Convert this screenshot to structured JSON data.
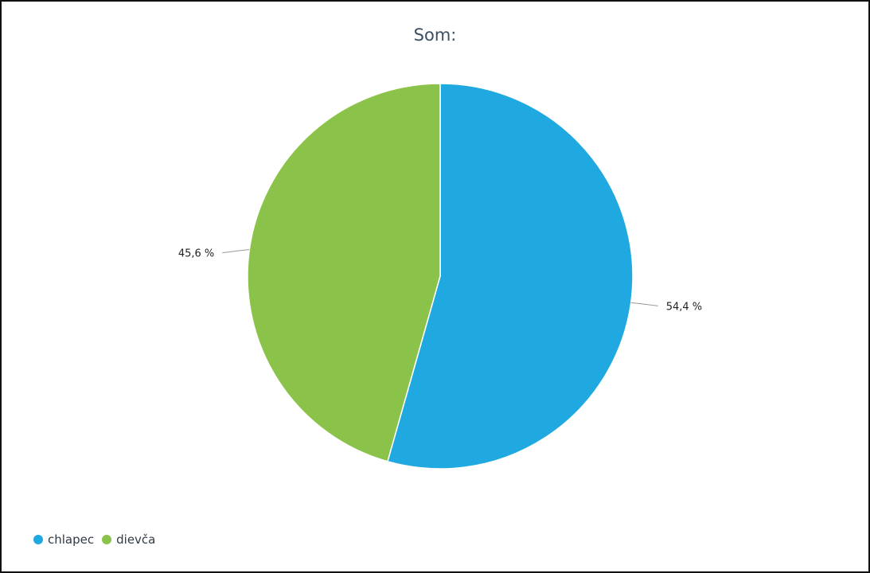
{
  "chart_data": {
    "type": "pie",
    "title": "Som:",
    "labels": [
      "chlapec",
      "dievča"
    ],
    "values": [
      54.4,
      45.6
    ],
    "value_labels": [
      "54,4 %",
      "45,6 %"
    ],
    "colors": [
      "#20a8e0",
      "#8bc34a"
    ],
    "legend_position": "bottom-left"
  }
}
